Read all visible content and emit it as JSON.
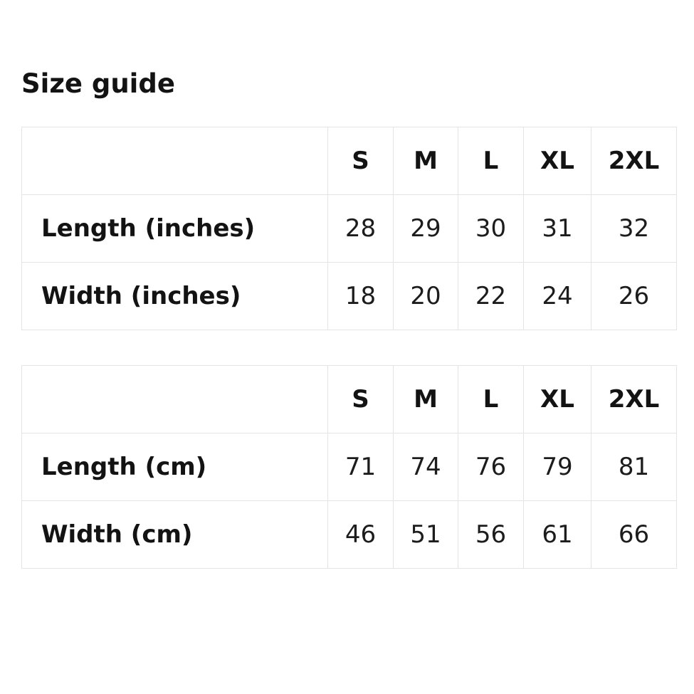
{
  "page": {
    "title": "Size guide",
    "background_color": "#ffffff",
    "text_color": "#161616",
    "border_color": "#e4e4e4"
  },
  "tables": [
    {
      "name": "imperial",
      "columns": [
        "",
        "S",
        "M",
        "L",
        "XL",
        "2XL"
      ],
      "rows": [
        {
          "label": "Length (inches)",
          "values": [
            "28",
            "29",
            "30",
            "31",
            "32"
          ]
        },
        {
          "label": "Width (inches)",
          "values": [
            "18",
            "20",
            "22",
            "24",
            "26"
          ]
        }
      ]
    },
    {
      "name": "metric",
      "columns": [
        "",
        "S",
        "M",
        "L",
        "XL",
        "2XL"
      ],
      "rows": [
        {
          "label": "Length (cm)",
          "values": [
            "71",
            "74",
            "76",
            "79",
            "81"
          ]
        },
        {
          "label": "Width (cm)",
          "values": [
            "46",
            "51",
            "56",
            "61",
            "66"
          ]
        }
      ]
    }
  ]
}
